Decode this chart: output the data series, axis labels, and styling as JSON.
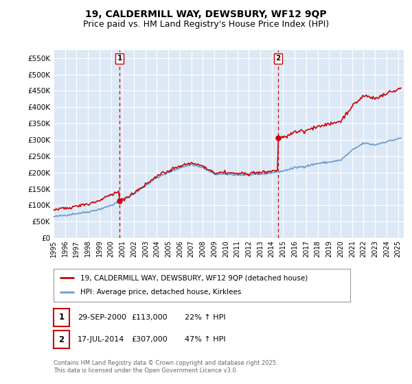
{
  "title": "19, CALDERMILL WAY, DEWSBURY, WF12 9QP",
  "subtitle": "Price paid vs. HM Land Registry's House Price Index (HPI)",
  "ylabel_ticks": [
    "£0",
    "£50K",
    "£100K",
    "£150K",
    "£200K",
    "£250K",
    "£300K",
    "£350K",
    "£400K",
    "£450K",
    "£500K",
    "£550K"
  ],
  "ytick_values": [
    0,
    50000,
    100000,
    150000,
    200000,
    250000,
    300000,
    350000,
    400000,
    450000,
    500000,
    550000
  ],
  "ylim": [
    0,
    575000
  ],
  "xlim_start": 1995.0,
  "xlim_end": 2025.5,
  "sale1_x": 2000.75,
  "sale1_y": 113000,
  "sale1_label": "1",
  "sale2_x": 2014.54,
  "sale2_y": 307000,
  "sale2_label": "2",
  "red_color": "#cc0000",
  "blue_color": "#6699cc",
  "bg_color": "#dce8f5",
  "grid_color": "#ffffff",
  "legend_line1": "19, CALDERMILL WAY, DEWSBURY, WF12 9QP (detached house)",
  "legend_line2": "HPI: Average price, detached house, Kirklees",
  "table_row1": [
    "1",
    "29-SEP-2000",
    "£113,000",
    "22% ↑ HPI"
  ],
  "table_row2": [
    "2",
    "17-JUL-2014",
    "£307,000",
    "47% ↑ HPI"
  ],
  "footer": "Contains HM Land Registry data © Crown copyright and database right 2025.\nThis data is licensed under the Open Government Licence v3.0.",
  "title_fontsize": 10,
  "subtitle_fontsize": 9
}
